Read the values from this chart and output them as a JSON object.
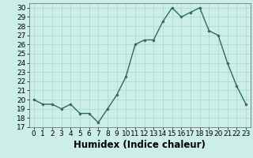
{
  "x": [
    0,
    1,
    2,
    3,
    4,
    5,
    6,
    7,
    8,
    9,
    10,
    11,
    12,
    13,
    14,
    15,
    16,
    17,
    18,
    19,
    20,
    21,
    22,
    23
  ],
  "y": [
    20,
    19.5,
    19.5,
    19,
    19.5,
    18.5,
    18.5,
    17.5,
    19,
    20.5,
    22.5,
    26,
    26.5,
    26.5,
    28.5,
    30,
    29,
    29.5,
    30,
    27.5,
    27,
    24,
    21.5,
    19.5
  ],
  "xlabel": "Humidex (Indice chaleur)",
  "ylim": [
    17,
    30.5
  ],
  "xlim": [
    -0.5,
    23.5
  ],
  "yticks": [
    17,
    18,
    19,
    20,
    21,
    22,
    23,
    24,
    25,
    26,
    27,
    28,
    29,
    30
  ],
  "xticks": [
    0,
    1,
    2,
    3,
    4,
    5,
    6,
    7,
    8,
    9,
    10,
    11,
    12,
    13,
    14,
    15,
    16,
    17,
    18,
    19,
    20,
    21,
    22,
    23
  ],
  "line_color": "#2e6b5e",
  "marker_color": "#2e6b5e",
  "bg_color": "#cceee8",
  "grid_color": "#aad4cc",
  "tick_fontsize": 6.5,
  "xlabel_fontsize": 8.5
}
